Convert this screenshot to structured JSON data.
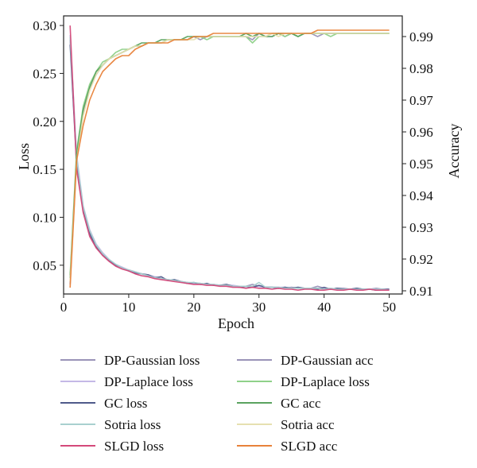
{
  "chart_data": {
    "type": "line",
    "title": "",
    "xlabel": "Epoch",
    "ylabel_left": "Loss",
    "ylabel_right": "Accuracy",
    "xlim": [
      0,
      52
    ],
    "ylim_left": [
      0.02,
      0.31
    ],
    "ylim_right": [
      0.909,
      0.9965
    ],
    "xticks": [
      0,
      10,
      20,
      30,
      40,
      50
    ],
    "yticks_left": [
      0.05,
      0.1,
      0.15,
      0.2,
      0.25,
      0.3
    ],
    "yticks_right": [
      0.91,
      0.92,
      0.93,
      0.94,
      0.95,
      0.96,
      0.97,
      0.98,
      0.99
    ],
    "grid": false,
    "legend_position": "bottom",
    "legend_columns": 2,
    "x": [
      1,
      2,
      3,
      4,
      5,
      6,
      7,
      8,
      9,
      10,
      11,
      12,
      13,
      14,
      15,
      16,
      17,
      18,
      19,
      20,
      21,
      22,
      23,
      24,
      25,
      26,
      27,
      28,
      29,
      30,
      31,
      32,
      33,
      34,
      35,
      36,
      37,
      38,
      39,
      40,
      41,
      42,
      43,
      44,
      45,
      46,
      47,
      48,
      49,
      50
    ],
    "series": [
      {
        "name": "DP-Gaussian loss",
        "axis": "left",
        "color": "#9a93b8",
        "values": [
          0.285,
          0.16,
          0.11,
          0.085,
          0.07,
          0.062,
          0.055,
          0.05,
          0.047,
          0.045,
          0.043,
          0.041,
          0.039,
          0.037,
          0.036,
          0.035,
          0.034,
          0.033,
          0.032,
          0.031,
          0.031,
          0.03,
          0.03,
          0.029,
          0.029,
          0.028,
          0.028,
          0.028,
          0.03,
          0.028,
          0.027,
          0.027,
          0.027,
          0.026,
          0.027,
          0.026,
          0.026,
          0.026,
          0.028,
          0.026,
          0.025,
          0.026,
          0.026,
          0.025,
          0.026,
          0.025,
          0.025,
          0.026,
          0.025,
          0.025
        ]
      },
      {
        "name": "DP-Laplace loss",
        "axis": "left",
        "color": "#c4b8e6",
        "values": [
          0.29,
          0.165,
          0.112,
          0.087,
          0.072,
          0.063,
          0.056,
          0.051,
          0.048,
          0.045,
          0.043,
          0.041,
          0.04,
          0.038,
          0.036,
          0.035,
          0.034,
          0.033,
          0.032,
          0.031,
          0.031,
          0.03,
          0.03,
          0.029,
          0.029,
          0.029,
          0.028,
          0.028,
          0.028,
          0.028,
          0.027,
          0.027,
          0.027,
          0.027,
          0.026,
          0.026,
          0.026,
          0.026,
          0.026,
          0.026,
          0.026,
          0.025,
          0.025,
          0.025,
          0.025,
          0.025,
          0.025,
          0.025,
          0.025,
          0.025
        ]
      },
      {
        "name": "GC loss",
        "axis": "left",
        "color": "#4f5a8a",
        "values": [
          0.28,
          0.155,
          0.108,
          0.083,
          0.069,
          0.061,
          0.055,
          0.05,
          0.047,
          0.044,
          0.042,
          0.041,
          0.04,
          0.037,
          0.038,
          0.034,
          0.035,
          0.033,
          0.031,
          0.032,
          0.03,
          0.031,
          0.029,
          0.029,
          0.03,
          0.028,
          0.027,
          0.028,
          0.027,
          0.029,
          0.027,
          0.027,
          0.026,
          0.027,
          0.026,
          0.027,
          0.026,
          0.026,
          0.025,
          0.027,
          0.025,
          0.026,
          0.025,
          0.025,
          0.026,
          0.025,
          0.025,
          0.024,
          0.025,
          0.025
        ]
      },
      {
        "name": "Sotria loss",
        "axis": "left",
        "color": "#a9d0cf",
        "values": [
          0.288,
          0.162,
          0.111,
          0.086,
          0.071,
          0.062,
          0.056,
          0.051,
          0.047,
          0.045,
          0.043,
          0.041,
          0.039,
          0.037,
          0.036,
          0.035,
          0.034,
          0.033,
          0.032,
          0.032,
          0.031,
          0.03,
          0.03,
          0.029,
          0.029,
          0.028,
          0.028,
          0.028,
          0.028,
          0.032,
          0.027,
          0.027,
          0.027,
          0.026,
          0.026,
          0.026,
          0.026,
          0.026,
          0.026,
          0.025,
          0.026,
          0.025,
          0.025,
          0.025,
          0.025,
          0.025,
          0.025,
          0.025,
          0.025,
          0.024
        ]
      },
      {
        "name": "SLGD loss",
        "axis": "left",
        "color": "#d4497a",
        "values": [
          0.3,
          0.15,
          0.105,
          0.08,
          0.068,
          0.06,
          0.054,
          0.049,
          0.046,
          0.044,
          0.041,
          0.039,
          0.038,
          0.036,
          0.035,
          0.034,
          0.033,
          0.032,
          0.031,
          0.03,
          0.03,
          0.029,
          0.029,
          0.028,
          0.028,
          0.027,
          0.027,
          0.026,
          0.027,
          0.026,
          0.026,
          0.025,
          0.026,
          0.025,
          0.025,
          0.024,
          0.025,
          0.025,
          0.024,
          0.024,
          0.025,
          0.024,
          0.024,
          0.025,
          0.024,
          0.024,
          0.025,
          0.024,
          0.024,
          0.024
        ]
      },
      {
        "name": "DP-Gaussian acc",
        "axis": "right",
        "color": "#9a93b8",
        "values": [
          0.912,
          0.952,
          0.966,
          0.974,
          0.978,
          0.981,
          0.983,
          0.984,
          0.985,
          0.986,
          0.987,
          0.987,
          0.988,
          0.988,
          0.988,
          0.989,
          0.989,
          0.989,
          0.989,
          0.99,
          0.989,
          0.99,
          0.99,
          0.99,
          0.99,
          0.99,
          0.99,
          0.99,
          0.989,
          0.991,
          0.99,
          0.99,
          0.991,
          0.99,
          0.991,
          0.99,
          0.991,
          0.991,
          0.99,
          0.991,
          0.991,
          0.991,
          0.991,
          0.991,
          0.991,
          0.991,
          0.991,
          0.991,
          0.991,
          0.991
        ]
      },
      {
        "name": "DP-Laplace loss",
        "axis": "right",
        "color": "#8fd18a",
        "values": [
          0.915,
          0.954,
          0.968,
          0.975,
          0.979,
          0.982,
          0.983,
          0.985,
          0.986,
          0.986,
          0.987,
          0.987,
          0.988,
          0.988,
          0.988,
          0.989,
          0.989,
          0.989,
          0.989,
          0.99,
          0.99,
          0.989,
          0.99,
          0.99,
          0.99,
          0.99,
          0.99,
          0.99,
          0.988,
          0.99,
          0.99,
          0.991,
          0.991,
          0.99,
          0.991,
          0.99,
          0.991,
          0.991,
          0.991,
          0.991,
          0.99,
          0.991,
          0.991,
          0.991,
          0.991,
          0.991,
          0.991,
          0.991,
          0.991,
          0.991
        ]
      },
      {
        "name": "GC acc",
        "axis": "right",
        "color": "#5aa35f",
        "values": [
          0.914,
          0.953,
          0.967,
          0.974,
          0.979,
          0.981,
          0.983,
          0.984,
          0.985,
          0.986,
          0.987,
          0.988,
          0.988,
          0.988,
          0.989,
          0.989,
          0.989,
          0.989,
          0.99,
          0.99,
          0.99,
          0.99,
          0.99,
          0.99,
          0.99,
          0.99,
          0.99,
          0.991,
          0.99,
          0.991,
          0.99,
          0.99,
          0.991,
          0.991,
          0.991,
          0.99,
          0.991,
          0.991,
          0.991,
          0.991,
          0.991,
          0.991,
          0.991,
          0.991,
          0.991,
          0.991,
          0.991,
          0.991,
          0.991,
          0.991
        ]
      },
      {
        "name": "Sotria acc",
        "axis": "right",
        "color": "#e6e0b0",
        "values": [
          0.913,
          0.951,
          0.965,
          0.973,
          0.978,
          0.981,
          0.983,
          0.984,
          0.985,
          0.986,
          0.987,
          0.987,
          0.988,
          0.988,
          0.988,
          0.989,
          0.989,
          0.989,
          0.989,
          0.989,
          0.99,
          0.99,
          0.99,
          0.99,
          0.99,
          0.99,
          0.99,
          0.99,
          0.99,
          0.99,
          0.99,
          0.991,
          0.99,
          0.991,
          0.991,
          0.991,
          0.991,
          0.991,
          0.991,
          0.991,
          0.991,
          0.991,
          0.991,
          0.991,
          0.991,
          0.991,
          0.991,
          0.991,
          0.991,
          0.991
        ]
      },
      {
        "name": "SLGD acc",
        "axis": "right",
        "color": "#e8823a",
        "values": [
          0.911,
          0.951,
          0.962,
          0.97,
          0.975,
          0.979,
          0.981,
          0.983,
          0.984,
          0.984,
          0.986,
          0.987,
          0.988,
          0.988,
          0.988,
          0.988,
          0.989,
          0.989,
          0.989,
          0.99,
          0.99,
          0.99,
          0.991,
          0.991,
          0.991,
          0.991,
          0.991,
          0.991,
          0.991,
          0.991,
          0.991,
          0.991,
          0.991,
          0.991,
          0.991,
          0.991,
          0.991,
          0.991,
          0.992,
          0.992,
          0.992,
          0.992,
          0.992,
          0.992,
          0.992,
          0.992,
          0.992,
          0.992,
          0.992,
          0.992
        ]
      }
    ]
  }
}
